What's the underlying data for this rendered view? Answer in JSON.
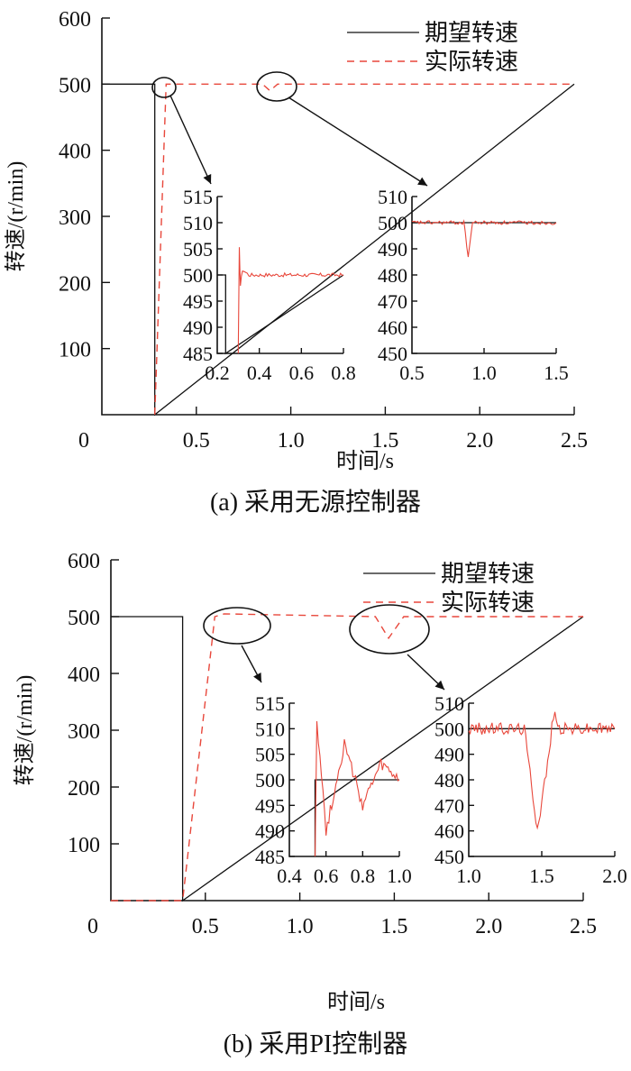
{
  "chart_data": [
    {
      "type": "line",
      "caption": "(a)  采用无源控制器",
      "xlabel": "时间/s",
      "ylabel": "转速/(r/min)",
      "xlim": [
        0,
        2.5
      ],
      "ylim": [
        0,
        600
      ],
      "xticks": [
        "0",
        "0.5",
        "1.0",
        "1.5",
        "2.0",
        "2.5"
      ],
      "yticks": [
        "100",
        "200",
        "300",
        "400",
        "500",
        "600"
      ],
      "legend": {
        "position": "top-right",
        "entries": [
          "期望转速",
          "实际转速"
        ]
      },
      "series": [
        {
          "name": "期望转速",
          "x": [
            0.0,
            0.28,
            0.28,
            2.5
          ],
          "y": [
            500,
            500,
            0,
            500
          ]
        },
        {
          "name": "实际转速",
          "x": [
            0.28,
            0.34,
            0.36,
            0.85,
            0.89,
            0.93,
            2.5
          ],
          "y": [
            0,
            500,
            500,
            500,
            490,
            500,
            500
          ]
        }
      ],
      "insets": [
        {
          "xlim": [
            0.2,
            0.8
          ],
          "ylim": [
            485,
            515
          ],
          "xticks": [
            "0.2",
            "0.4",
            "0.6",
            "0.8"
          ],
          "yticks": [
            "485",
            "490",
            "495",
            "500",
            "505",
            "510",
            "515"
          ],
          "series": [
            {
              "name": "期望转速",
              "x": [
                0.2,
                0.24,
                0.24,
                0.8
              ],
              "y": [
                500,
                500,
                485,
                500
              ]
            },
            {
              "name": "实际转速",
              "x": [
                0.3,
                0.305,
                0.31,
                0.32,
                0.35,
                0.8
              ],
              "y": [
                485,
                505,
                498,
                501,
                500,
                500
              ]
            }
          ]
        },
        {
          "xlim": [
            0.5,
            1.5
          ],
          "ylim": [
            450,
            510
          ],
          "xticks": [
            "0.5",
            "1.0",
            "1.5"
          ],
          "yticks": [
            "450",
            "460",
            "470",
            "480",
            "490",
            "500",
            "510"
          ],
          "series": [
            {
              "name": "期望转速",
              "x": [
                0.5,
                1.5
              ],
              "y": [
                500,
                500
              ]
            },
            {
              "name": "实际转速",
              "x": [
                0.5,
                0.86,
                0.89,
                0.92,
                1.5
              ],
              "y": [
                500,
                500,
                487,
                500,
                500
              ]
            }
          ]
        }
      ]
    },
    {
      "type": "line",
      "caption": "(b)  采用PI控制器",
      "xlabel": "时间/s",
      "ylabel": "转速/(r/min)",
      "xlim": [
        0,
        2.5
      ],
      "ylim": [
        0,
        600
      ],
      "xticks": [
        "0",
        "0.5",
        "1.0",
        "1.5",
        "2.0",
        "2.5"
      ],
      "yticks": [
        "100",
        "200",
        "300",
        "400",
        "500",
        "600"
      ],
      "legend": {
        "position": "top-right",
        "entries": [
          "期望转速",
          "实际转速"
        ]
      },
      "series": [
        {
          "name": "期望转速",
          "x": [
            0.0,
            0.38,
            0.38,
            2.5
          ],
          "y": [
            500,
            500,
            0,
            500
          ]
        },
        {
          "name": "实际转速",
          "x": [
            0.0,
            0.38,
            0.55,
            0.6,
            1.4,
            1.47,
            1.55,
            2.5
          ],
          "y": [
            0,
            0,
            500,
            505,
            500,
            462,
            500,
            500
          ]
        }
      ],
      "insets": [
        {
          "xlim": [
            0.4,
            1.0
          ],
          "ylim": [
            485,
            515
          ],
          "xticks": [
            "0.4",
            "0.6",
            "0.8",
            "1.0"
          ],
          "yticks": [
            "485",
            "490",
            "495",
            "500",
            "505",
            "510",
            "515"
          ],
          "series": [
            {
              "name": "期望转速",
              "x": [
                0.54,
                0.54,
                1.0
              ],
              "y": [
                485,
                500,
                500
              ]
            },
            {
              "name": "实际转速",
              "x": [
                0.54,
                0.55,
                0.6,
                0.7,
                0.8,
                0.9,
                1.0
              ],
              "y": [
                485,
                512,
                490,
                507,
                495,
                503,
                500
              ]
            }
          ]
        },
        {
          "xlim": [
            1.0,
            2.0
          ],
          "ylim": [
            450,
            510
          ],
          "xticks": [
            "1.0",
            "1.5",
            "2.0"
          ],
          "yticks": [
            "450",
            "460",
            "470",
            "480",
            "490",
            "500",
            "510"
          ],
          "series": [
            {
              "name": "期望转速",
              "x": [
                1.0,
                2.0
              ],
              "y": [
                500,
                500
              ]
            },
            {
              "name": "实际转速",
              "x": [
                1.0,
                1.38,
                1.47,
                1.55,
                1.58,
                1.62,
                2.0
              ],
              "y": [
                500,
                500,
                461,
                490,
                506,
                500,
                500
              ]
            }
          ]
        }
      ]
    }
  ]
}
